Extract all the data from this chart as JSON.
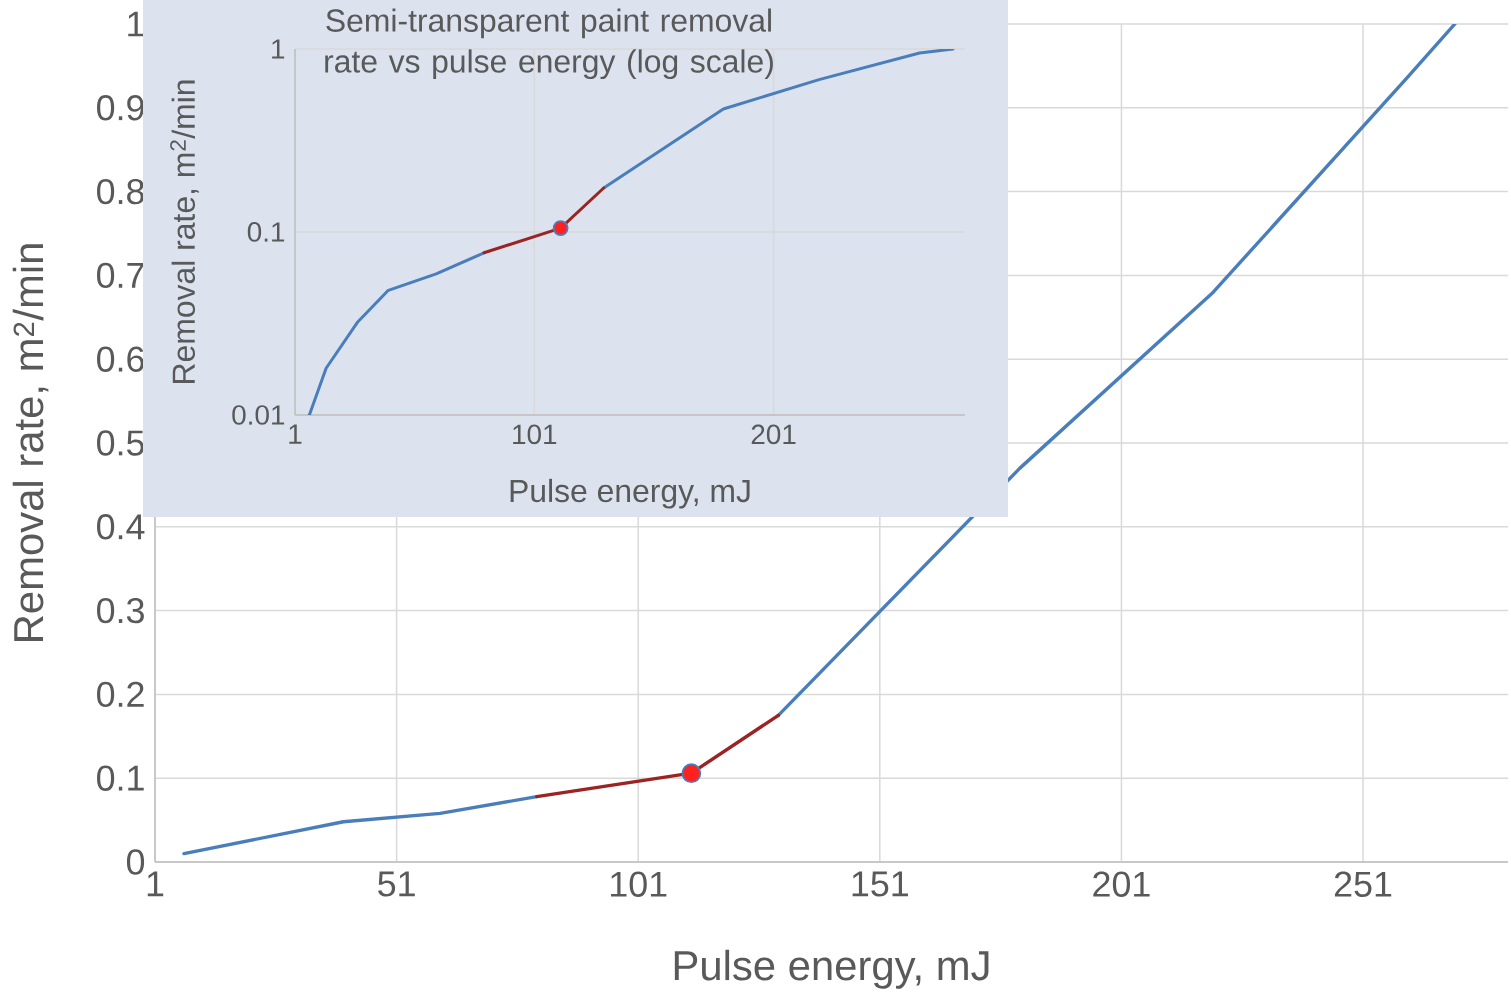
{
  "chart_data": [
    {
      "type": "line",
      "xlabel": "Pulse energy, mJ",
      "ylabel": "Removal rate, m$^{2}$/min",
      "x": [
        7,
        40,
        60,
        80,
        112,
        130,
        180,
        220,
        260,
        270
      ],
      "series": [
        {
          "color": "#4a7ebb",
          "values": [
            0.01,
            0.048,
            0.058,
            0.078,
            null,
            0.175,
            0.47,
            0.68,
            0.935,
            1.0
          ]
        },
        {
          "color": "#9b2423",
          "values": [
            null,
            null,
            null,
            0.078,
            0.106,
            0.175,
            null,
            null,
            null,
            null
          ]
        },
        {
          "type": "scatter",
          "color": "#ff2020",
          "marker": "circle",
          "x": [
            112
          ],
          "values": [
            0.106
          ]
        }
      ],
      "xlim": [
        1,
        281
      ],
      "ylim": [
        0,
        1
      ],
      "xticks": [
        1,
        51,
        101,
        151,
        201,
        251
      ],
      "yticks": [
        0,
        0.1,
        0.2,
        0.3,
        0.4,
        0.5,
        0.6,
        0.7,
        0.8,
        0.9,
        1
      ],
      "grid": true
    },
    {
      "type": "line",
      "title": "Semi-transparent paint removal rate vs pulse energy (log scale)",
      "xlabel": "Pulse energy, mJ",
      "ylabel": "Removal rate, m$^{2}$/min",
      "x": [
        7,
        14,
        27,
        40,
        60,
        80,
        112,
        130,
        180,
        220,
        262,
        276
      ],
      "series": [
        {
          "color": "#4a7ebb",
          "values": [
            0.01,
            0.018,
            0.032,
            0.048,
            0.059,
            0.077,
            null,
            0.174,
            0.47,
            0.68,
            0.95,
            1.0
          ]
        },
        {
          "color": "#9b2423",
          "values": [
            null,
            null,
            null,
            null,
            null,
            0.077,
            0.105,
            0.174,
            null,
            null,
            null,
            null
          ]
        },
        {
          "type": "scatter",
          "color": "#ff2020",
          "marker": "circle",
          "x": [
            112
          ],
          "values": [
            0.105
          ]
        }
      ],
      "xlim": [
        1,
        281
      ],
      "ylim": [
        0.01,
        1
      ],
      "xticks": [
        1,
        101,
        201
      ],
      "yticks": [
        0.01,
        0.1,
        1
      ],
      "grid": true,
      "log": true
    }
  ]
}
